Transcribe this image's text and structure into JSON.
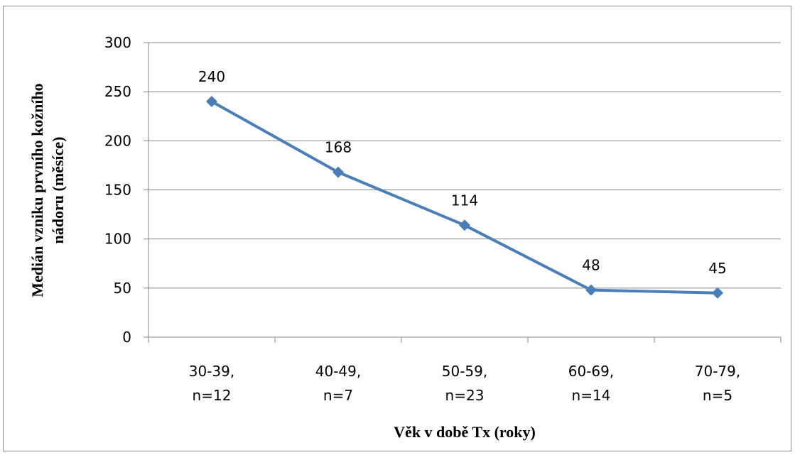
{
  "chart_data": {
    "type": "line",
    "categories": [
      [
        "30-39,",
        "n=12"
      ],
      [
        "40-49,",
        "n=7"
      ],
      [
        "50-59,",
        "n=23"
      ],
      [
        "60-69,",
        "n=14"
      ],
      [
        "70-79,",
        "n=5"
      ]
    ],
    "series": [
      {
        "values": [
          240,
          168,
          114,
          48,
          45
        ],
        "color": "#4a7ebb",
        "marker": "diamond"
      }
    ],
    "data_labels": [
      "240",
      "168",
      "114",
      "48",
      "45"
    ],
    "xlabel": "Věk v době Tx (roky)",
    "ylabel_lines": [
      "Medián vzniku prvního kožního",
      "nádoru (měsíce)"
    ],
    "ylim": [
      0,
      300
    ],
    "yticks": [
      0,
      50,
      100,
      150,
      200,
      250,
      300
    ],
    "ytick_labels": [
      "0",
      "50",
      "100",
      "150",
      "200",
      "250",
      "300"
    ],
    "grid": true,
    "legend": "none",
    "gridline_color": "#868686",
    "axis_color": "#868686"
  }
}
